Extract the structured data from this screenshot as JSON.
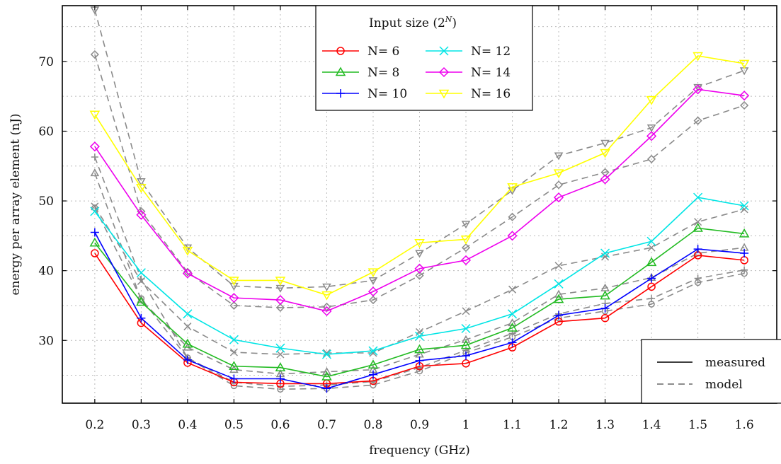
{
  "chart_data": {
    "type": "line",
    "title": "",
    "xlabel": "frequency (GHz)",
    "ylabel": "energy per array element (nJ)",
    "x": [
      0.2,
      0.3,
      0.4,
      0.5,
      0.6,
      0.7,
      0.8,
      0.9,
      1.0,
      1.1,
      1.2,
      1.3,
      1.4,
      1.5,
      1.6
    ],
    "x_tick_labels": [
      "0.2",
      "0.3",
      "0.4",
      "0.5",
      "0.6",
      "0.7",
      "0.8",
      "0.9",
      "1",
      "1.1",
      "1.2",
      "1.3",
      "1.4",
      "1.5",
      "1.6"
    ],
    "y_ticks": [
      30,
      40,
      50,
      60,
      70
    ],
    "y_tick_labels": [
      "30",
      "40",
      "50",
      "60",
      "70"
    ],
    "xlim": [
      0.13,
      1.67
    ],
    "ylim": [
      21,
      78
    ],
    "grid": true,
    "legend": {
      "title": "Input size (2",
      "title_sup": "N",
      "title_end": ")",
      "placement": "top-center"
    },
    "style_legend": {
      "placement": "bottom-right",
      "entries": [
        {
          "label": "measured",
          "dash": "solid"
        },
        {
          "label": "model",
          "dash": "dashed"
        }
      ]
    },
    "series": [
      {
        "name": "N= 6",
        "color": "#ff0000",
        "marker": "circle",
        "measured": [
          42.5,
          32.5,
          26.8,
          24.0,
          23.8,
          23.8,
          24.2,
          26.3,
          26.7,
          29.0,
          32.7,
          33.2,
          37.7,
          42.2,
          41.5
        ],
        "model": [
          49.0,
          36.0,
          27.5,
          23.5,
          23.0,
          23.1,
          23.6,
          25.6,
          28.2,
          30.5,
          33.2,
          34.2,
          35.2,
          38.3,
          39.6
        ]
      },
      {
        "name": "N= 8",
        "color": "#22bb22",
        "marker": "triangle",
        "measured": [
          44.0,
          35.5,
          29.5,
          26.3,
          26.1,
          24.8,
          26.5,
          28.7,
          29.3,
          31.8,
          35.9,
          36.4,
          41.2,
          46.1,
          45.3
        ],
        "model": [
          54.0,
          35.8,
          29.0,
          25.8,
          25.2,
          25.5,
          25.8,
          28.0,
          30.1,
          32.5,
          36.6,
          37.5,
          39.0,
          42.5,
          43.3
        ]
      },
      {
        "name": "N= 10",
        "color": "#0000ff",
        "marker": "plus",
        "measured": [
          45.5,
          33.2,
          27.2,
          24.5,
          24.5,
          23.1,
          25.1,
          27.1,
          27.8,
          29.7,
          33.6,
          34.6,
          38.9,
          43.1,
          42.5
        ],
        "model": [
          56.3,
          38.8,
          27.5,
          24.0,
          23.4,
          23.6,
          24.1,
          26.1,
          28.6,
          31.0,
          33.8,
          35.3,
          36.0,
          38.9,
          40.1
        ]
      },
      {
        "name": "N= 12",
        "color": "#00e5e5",
        "marker": "cross",
        "measured": [
          48.5,
          39.7,
          33.8,
          30.1,
          28.9,
          28.0,
          28.5,
          30.6,
          31.7,
          33.8,
          38.1,
          42.5,
          44.2,
          50.5,
          49.3
        ],
        "model": [
          49.2,
          38.5,
          32.0,
          28.3,
          28.0,
          28.2,
          28.2,
          31.2,
          34.2,
          37.3,
          40.7,
          42.0,
          43.3,
          47.0,
          48.8
        ]
      },
      {
        "name": "N= 14",
        "color": "#ee00ee",
        "marker": "diamond",
        "measured": [
          57.8,
          48.0,
          39.6,
          36.1,
          35.8,
          34.2,
          37.0,
          40.3,
          41.5,
          45.0,
          50.5,
          53.1,
          59.3,
          66.0,
          65.1
        ],
        "model": [
          71.0,
          48.5,
          39.8,
          35.0,
          34.7,
          34.8,
          35.8,
          39.3,
          43.3,
          47.7,
          52.3,
          54.1,
          56.0,
          61.5,
          63.7
        ]
      },
      {
        "name": "N= 16",
        "color": "#ffff00",
        "marker": "invtriangle",
        "measured": [
          62.4,
          51.9,
          42.9,
          38.6,
          38.6,
          36.5,
          39.8,
          44.0,
          44.5,
          52.0,
          54.0,
          56.9,
          64.5,
          70.8,
          69.7
        ],
        "model": [
          77.4,
          52.8,
          43.3,
          37.8,
          37.5,
          37.7,
          38.6,
          42.5,
          46.7,
          51.5,
          56.5,
          58.3,
          60.5,
          66.3,
          68.7
        ]
      }
    ]
  }
}
